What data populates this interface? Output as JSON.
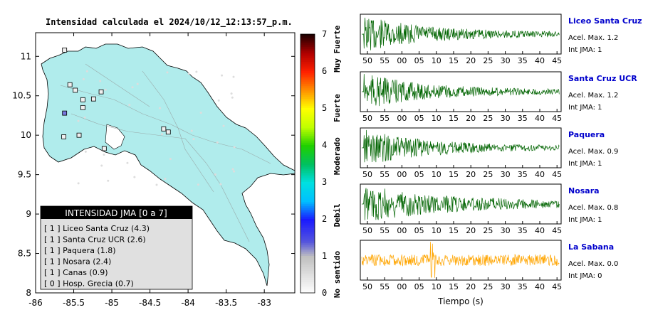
{
  "header": {
    "title": "Intensidad calculada el 2024/10/12_12:13:57_p.m."
  },
  "map": {
    "x_ticks": [
      "-86",
      "-85.5",
      "-85",
      "-84.5",
      "-84",
      "-83.5",
      "-83"
    ],
    "y_ticks": [
      "11",
      "10.5",
      "10",
      "9.5",
      "9",
      "8.5",
      "8"
    ],
    "land_color": "#b0ecec"
  },
  "colorbar": {
    "ticks": [
      "0",
      "1",
      "2",
      "3",
      "4",
      "5",
      "6",
      "7"
    ],
    "labels": [
      "No sentido",
      "Debil",
      "Moderado",
      "Fuerte",
      "Muy Fuerte"
    ]
  },
  "legend": {
    "title": "INTENSIDAD JMA [0 a 7]",
    "items": [
      "[ 1 ] Liceo Santa Cruz (4.3)",
      "[ 1 ] Santa Cruz UCR (2.6)",
      "[ 1 ] Paquera (1.8)",
      "[ 1 ] Nosara (2.4)",
      "[ 1 ] Canas (0.9)",
      "[ 0 ] Hosp. Grecia (0.7)"
    ]
  },
  "traces": {
    "x_ticks": [
      "50",
      "55",
      "00",
      "05",
      "10",
      "15",
      "20",
      "25",
      "30",
      "35",
      "40",
      "45"
    ],
    "xlabel": "Tiempo (s)",
    "stations": [
      {
        "name": "Liceo Santa Cruz",
        "accel": "Acel. Max. 1.2",
        "int": "Int JMA: 1",
        "color": "#006400"
      },
      {
        "name": "Santa Cruz UCR",
        "accel": "Acel. Max. 1.2",
        "int": "Int JMA: 1",
        "color": "#006400"
      },
      {
        "name": "Paquera",
        "accel": "Acel. Max. 0.9",
        "int": "Int JMA: 1",
        "color": "#006400"
      },
      {
        "name": "Nosara",
        "accel": "Acel. Max. 0.8",
        "int": "Int JMA: 1",
        "color": "#006400"
      },
      {
        "name": "La Sabana",
        "accel": "Acel. Max. 0.0",
        "int": "Int JMA: 0",
        "color": "#ffa500"
      }
    ]
  },
  "chart_data": [
    {
      "type": "map",
      "title": "Intensidad calculada el 2024/10/12_12:13:57_p.m.",
      "xlim": [
        -86,
        -82.6
      ],
      "ylim": [
        8,
        11.3
      ],
      "stations": [
        {
          "lon": -85.62,
          "lat": 11.08,
          "intensity": 1
        },
        {
          "lon": -85.55,
          "lat": 10.64,
          "intensity": 1
        },
        {
          "lon": -85.48,
          "lat": 10.57,
          "intensity": 1
        },
        {
          "lon": -85.62,
          "lat": 10.28,
          "intensity": 2
        },
        {
          "lon": -85.38,
          "lat": 10.45,
          "intensity": 1
        },
        {
          "lon": -85.38,
          "lat": 10.35,
          "intensity": 1
        },
        {
          "lon": -85.24,
          "lat": 10.46,
          "intensity": 1
        },
        {
          "lon": -85.14,
          "lat": 10.55,
          "intensity": 1
        },
        {
          "lon": -85.43,
          "lat": 10.0,
          "intensity": 1
        },
        {
          "lon": -85.63,
          "lat": 9.98,
          "intensity": 1
        },
        {
          "lon": -84.32,
          "lat": 10.08,
          "intensity": 0
        },
        {
          "lon": -84.26,
          "lat": 10.04,
          "intensity": 1
        },
        {
          "lon": -85.1,
          "lat": 9.83,
          "intensity": 1
        }
      ]
    },
    {
      "type": "line",
      "xlabel": "Tiempo (s)",
      "series": [
        {
          "name": "Liceo Santa Cruz",
          "peak": 1.2,
          "decay": 0.035,
          "onset": 0.0,
          "color": "#006400"
        },
        {
          "name": "Santa Cruz UCR",
          "peak": 1.2,
          "decay": 0.035,
          "onset": 0.0,
          "color": "#006400"
        },
        {
          "name": "Paquera",
          "peak": 0.9,
          "decay": 0.04,
          "onset": 0.1,
          "color": "#006400"
        },
        {
          "name": "Nosara",
          "peak": 0.8,
          "decay": 0.02,
          "onset": 0.0,
          "color": "#006400"
        },
        {
          "name": "La Sabana",
          "peak": 0.0,
          "decay": 0.0,
          "onset": 0.0,
          "color": "#ffa500"
        }
      ]
    }
  ]
}
